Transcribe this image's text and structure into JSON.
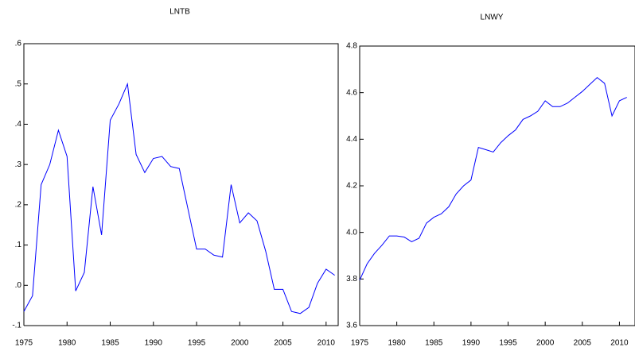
{
  "chart_data": [
    {
      "type": "line",
      "title": "LNTB",
      "x": [
        1975,
        1976,
        1977,
        1978,
        1979,
        1980,
        1981,
        1982,
        1983,
        1984,
        1985,
        1986,
        1987,
        1988,
        1989,
        1990,
        1991,
        1992,
        1993,
        1994,
        1995,
        1996,
        1997,
        1998,
        1999,
        2000,
        2001,
        2002,
        2003,
        2004,
        2005,
        2006,
        2007,
        2008,
        2009,
        2010,
        2011
      ],
      "series": [
        {
          "name": "LNTB",
          "color": "#0000ff",
          "values": [
            -0.065,
            -0.026,
            0.25,
            0.3,
            0.385,
            0.32,
            -0.014,
            0.032,
            0.245,
            0.125,
            0.41,
            0.45,
            0.5,
            0.325,
            0.28,
            0.315,
            0.32,
            0.295,
            0.29,
            0.19,
            0.09,
            0.09,
            0.075,
            0.07,
            0.25,
            0.155,
            0.18,
            0.16,
            0.085,
            -0.01,
            -0.01,
            -0.065,
            -0.07,
            -0.055,
            0.005,
            0.04,
            0.025
          ]
        }
      ],
      "xlim": [
        1975,
        2011.4
      ],
      "xticks": [
        1975,
        1980,
        1985,
        1990,
        1995,
        2000,
        2005,
        2010
      ],
      "ylim": [
        -0.1,
        0.6
      ],
      "yticks": [
        {
          "value": -0.1,
          "label": "-.1"
        },
        {
          "value": 0,
          "label": ".0"
        },
        {
          "value": 0.1,
          "label": ".1"
        },
        {
          "value": 0.2,
          "label": ".2"
        },
        {
          "value": 0.3,
          "label": ".3"
        },
        {
          "value": 0.4,
          "label": ".4"
        },
        {
          "value": 0.5,
          "label": ".5"
        },
        {
          "value": 0.6,
          "label": ".6"
        }
      ]
    },
    {
      "type": "line",
      "title": "LNWY",
      "x": [
        1975,
        1976,
        1977,
        1978,
        1979,
        1980,
        1981,
        1982,
        1983,
        1984,
        1985,
        1986,
        1987,
        1988,
        1989,
        1990,
        1991,
        1992,
        1993,
        1994,
        1995,
        1996,
        1997,
        1998,
        1999,
        2000,
        2001,
        2002,
        2003,
        2004,
        2005,
        2006,
        2007,
        2008,
        2009,
        2010,
        2011
      ],
      "series": [
        {
          "name": "LNWY",
          "color": "#0000ff",
          "values": [
            3.795,
            3.865,
            3.91,
            3.945,
            3.985,
            3.985,
            3.98,
            3.96,
            3.975,
            4.04,
            4.065,
            4.08,
            4.11,
            4.165,
            4.2,
            4.225,
            4.365,
            4.355,
            4.345,
            4.385,
            4.415,
            4.44,
            4.485,
            4.5,
            4.52,
            4.565,
            4.54,
            4.54,
            4.555,
            4.58,
            4.605,
            4.635,
            4.665,
            4.64,
            4.5,
            4.565,
            4.58
          ]
        }
      ],
      "xlim": [
        1975,
        2012.1
      ],
      "xticks": [
        1975,
        1980,
        1985,
        1990,
        1995,
        2000,
        2005,
        2010
      ],
      "ylim": [
        3.6,
        4.8
      ],
      "yticks": [
        3.6,
        3.8,
        {
          "value": 4,
          "label": "4.0"
        },
        4.2,
        4.4,
        4.6,
        4.8
      ]
    }
  ]
}
